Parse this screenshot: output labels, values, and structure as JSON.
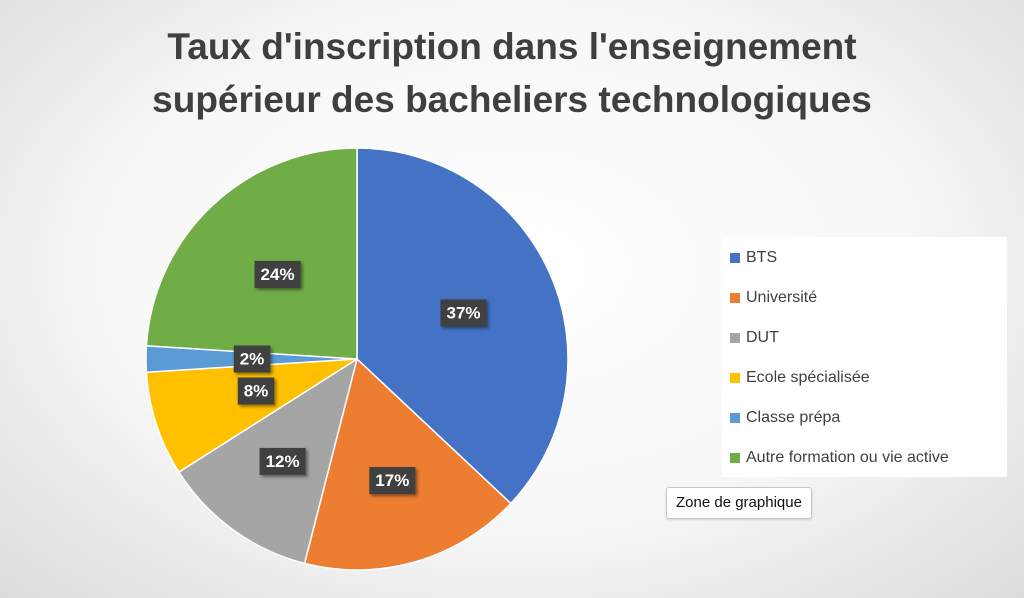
{
  "chart_data": {
    "type": "pie",
    "title": [
      "Taux d'inscription dans l'enseignement",
      "supérieur des bacheliers technologiques"
    ],
    "slices": [
      {
        "label": "BTS",
        "value": 37,
        "data_label": "37%",
        "color": "#4472c4"
      },
      {
        "label": "Université",
        "value": 17,
        "data_label": "17%",
        "color": "#ed7d31"
      },
      {
        "label": "DUT",
        "value": 12,
        "data_label": "12%",
        "color": "#a5a5a5"
      },
      {
        "label": "Ecole spécialisée",
        "value": 8,
        "data_label": "8%",
        "color": "#ffc000"
      },
      {
        "label": "Classe prépa",
        "value": 2,
        "data_label": "2%",
        "color": "#5b9bd5"
      },
      {
        "label": "Autre formation ou vie active",
        "value": 24,
        "data_label": "24%",
        "color": "#70ad47"
      }
    ],
    "legend_position": "right"
  },
  "tooltip": {
    "text": "Zone de graphique"
  }
}
